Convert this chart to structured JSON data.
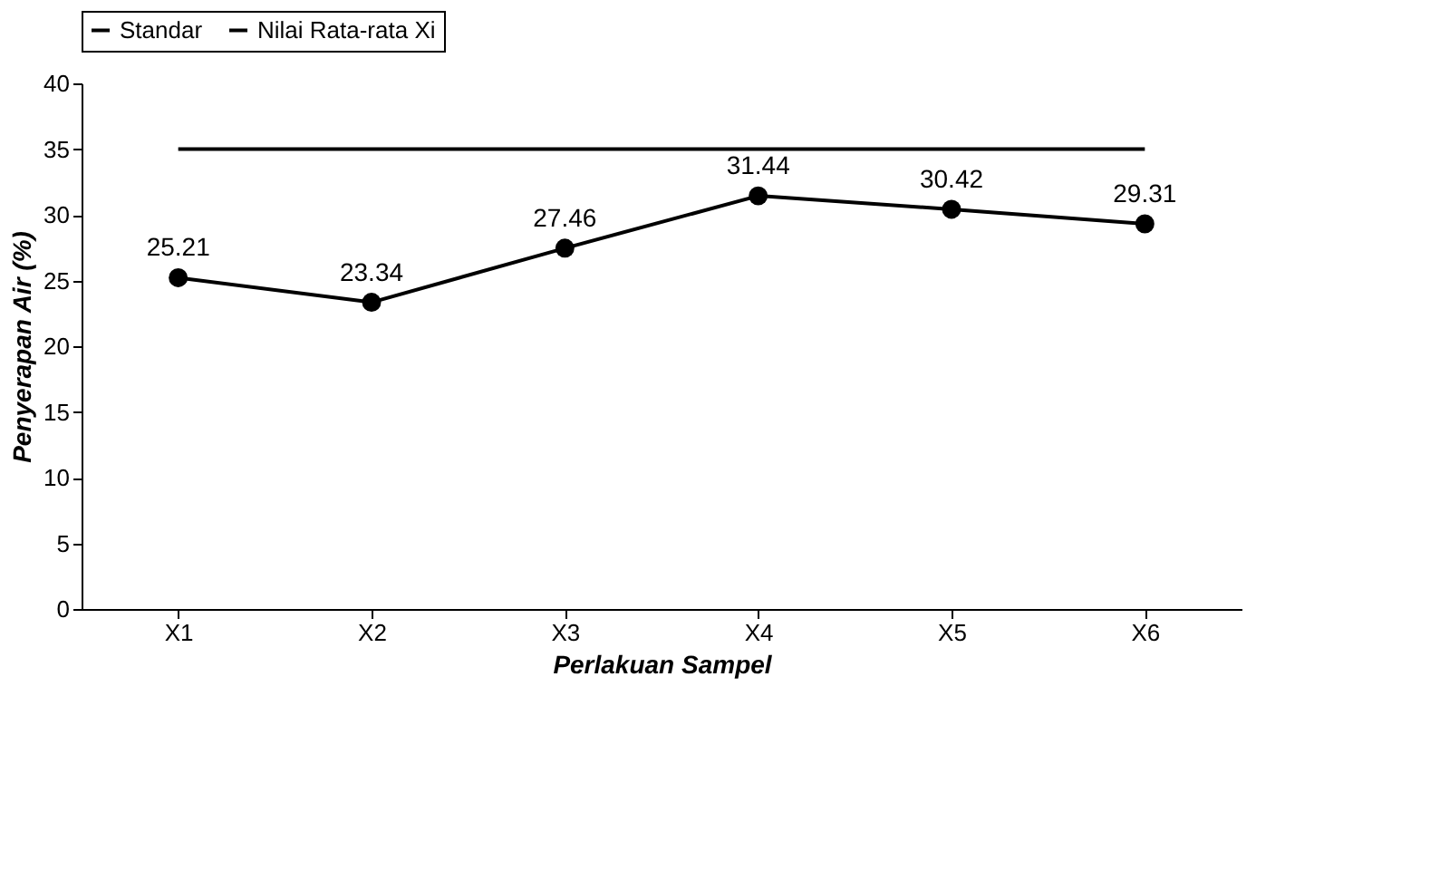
{
  "chart_data": {
    "type": "line",
    "xlabel": "Perlakuan Sampel",
    "ylabel": "Penyerapan Air (%)",
    "categories": [
      "X1",
      "X2",
      "X3",
      "X4",
      "X5",
      "X6"
    ],
    "series": [
      {
        "name": "Standar",
        "color": "#000000",
        "values": [
          35,
          35,
          35,
          35,
          35,
          35
        ],
        "marker": "none"
      },
      {
        "name": "Nilai Rata-rata Xi",
        "color": "#000000",
        "values": [
          25.21,
          23.34,
          27.46,
          31.44,
          30.42,
          29.31
        ],
        "marker": "circle",
        "value_labels": [
          "25.21",
          "23.34",
          "27.46",
          "31.44",
          "30.42",
          "29.31"
        ]
      }
    ],
    "ylim": [
      0,
      40
    ],
    "yticks": [
      0,
      5,
      10,
      15,
      20,
      25,
      30,
      35,
      40
    ],
    "grid": false,
    "legend": "top",
    "line_style": "solid"
  }
}
